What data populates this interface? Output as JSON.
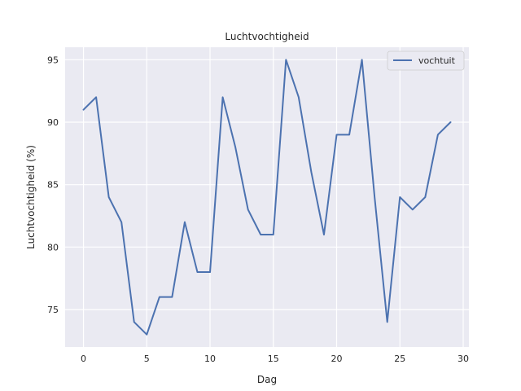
{
  "chart_data": {
    "type": "line",
    "title": "Luchtvochtigheid",
    "xlabel": "Dag",
    "ylabel": "Luchtvochtigheid (%)",
    "xlim": [
      -1.45,
      30.45
    ],
    "ylim": [
      72.0,
      96.0
    ],
    "xticks": [
      0,
      5,
      10,
      15,
      20,
      25,
      30
    ],
    "yticks": [
      75,
      80,
      85,
      90,
      95
    ],
    "grid": true,
    "legend_position": "top-right",
    "series": [
      {
        "name": "vochtuit",
        "color": "#4c72b0",
        "x": [
          0,
          1,
          2,
          3,
          4,
          5,
          6,
          7,
          8,
          9,
          10,
          11,
          12,
          13,
          14,
          15,
          16,
          17,
          18,
          19,
          20,
          21,
          22,
          23,
          24,
          25,
          26,
          27,
          28,
          29
        ],
        "values": [
          91,
          92,
          84,
          82,
          74,
          73,
          76,
          76,
          82,
          78,
          78,
          92,
          88,
          83,
          81,
          81,
          95,
          92,
          86,
          81,
          89,
          89,
          95,
          84,
          74,
          84,
          83,
          84,
          89,
          90
        ]
      }
    ]
  }
}
